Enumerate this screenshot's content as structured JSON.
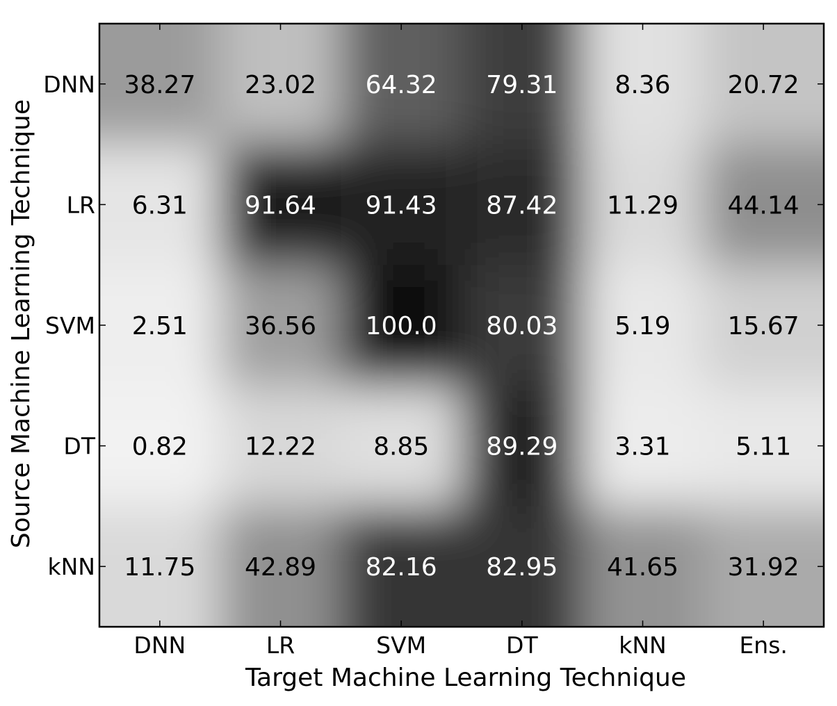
{
  "chart_data": {
    "type": "heatmap",
    "x_categories": [
      "DNN",
      "LR",
      "SVM",
      "DT",
      "kNN",
      "Ens."
    ],
    "y_categories": [
      "DNN",
      "LR",
      "SVM",
      "DT",
      "kNN"
    ],
    "values": [
      [
        "38.27",
        "23.02",
        "64.32",
        "79.31",
        "8.36",
        "20.72"
      ],
      [
        "6.31",
        "91.64",
        "91.43",
        "87.42",
        "11.29",
        "44.14"
      ],
      [
        "2.51",
        "36.56",
        "100.0",
        "80.03",
        "5.19",
        "15.67"
      ],
      [
        "0.82",
        "12.22",
        "8.85",
        "89.29",
        "3.31",
        "5.11"
      ],
      [
        "11.75",
        "42.89",
        "82.16",
        "82.95",
        "41.65",
        "31.92"
      ]
    ],
    "xlabel": "Target Machine Learning Technique",
    "ylabel": "Source Machine Learning Technique",
    "value_range": [
      0,
      100
    ],
    "colormap": "greys",
    "interpolation": "smooth",
    "grid": false
  }
}
